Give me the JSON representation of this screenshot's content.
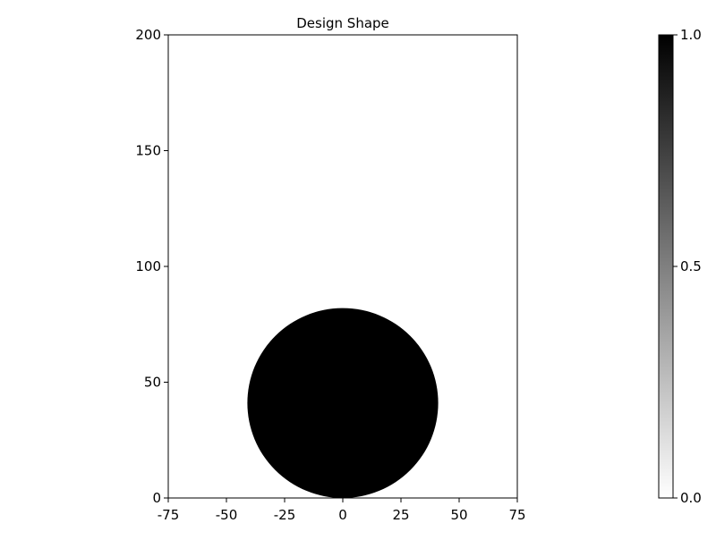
{
  "chart_data": {
    "type": "heatmap",
    "title": "Design Shape",
    "xlabel": "",
    "ylabel": "",
    "xlim": [
      -75,
      75
    ],
    "ylim": [
      0,
      200
    ],
    "xticks": [
      -75,
      -50,
      -25,
      0,
      25,
      50,
      75
    ],
    "yticks": [
      0,
      50,
      100,
      150,
      200
    ],
    "grid": false,
    "shape": {
      "kind": "circle",
      "center": [
        0,
        41
      ],
      "radius": 41,
      "value": 1.0,
      "background_value": 0.0
    },
    "colorbar": {
      "colormap": "grayscale",
      "range": [
        0.0,
        1.0
      ],
      "low_color": "#ffffff",
      "high_color": "#000000",
      "ticks": [
        "0.0",
        "0.5",
        "1.0"
      ]
    }
  }
}
